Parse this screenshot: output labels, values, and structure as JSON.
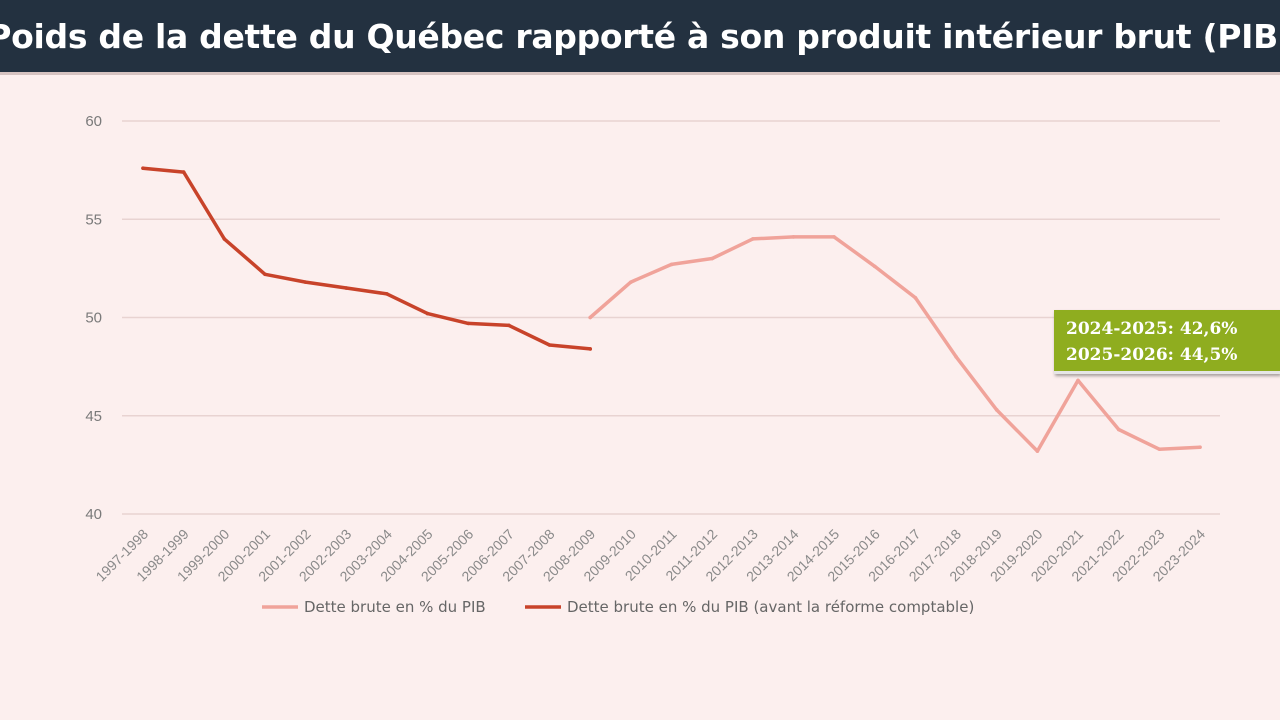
{
  "title": "Poids de la dette du Québec rapporté à son produit intérieur brut (PIB)",
  "colors": {
    "title_bg": "#233140",
    "chart_bg": "#fcefee",
    "series_new": "#f0a39a",
    "series_old": "#c8432a",
    "callout_bg": "#8fad1f"
  },
  "callout": {
    "line1": "2024-2025: 42,6%",
    "line2": "2025-2026: 44,5%"
  },
  "chart_data": {
    "type": "line",
    "title": "Poids de la dette du Québec rapporté à son produit intérieur brut (PIB)",
    "xlabel": "",
    "ylabel": "",
    "ylim": [
      40,
      60
    ],
    "yticks": [
      40,
      45,
      50,
      55,
      60
    ],
    "grid": true,
    "legend_position": "bottom",
    "categories": [
      "1997-1998",
      "1998-1999",
      "1999-2000",
      "2000-2001",
      "2001-2002",
      "2002-2003",
      "2003-2004",
      "2004-2005",
      "2005-2006",
      "2006-2007",
      "2007-2008",
      "2008-2009",
      "2009-2010",
      "2010-2011",
      "2011-2012",
      "2012-2013",
      "2013-2014",
      "2014-2015",
      "2015-2016",
      "2016-2017",
      "2017-2018",
      "2018-2019",
      "2019-2020",
      "2020-2021",
      "2021-2022",
      "2022-2023",
      "2023-2024"
    ],
    "series": [
      {
        "name": "Dette brute en % du PIB",
        "color": "#f0a39a",
        "values": [
          null,
          null,
          null,
          null,
          null,
          null,
          null,
          null,
          null,
          null,
          null,
          50.0,
          51.8,
          52.7,
          53.0,
          54.0,
          54.1,
          54.1,
          52.6,
          51.0,
          48.0,
          45.3,
          43.2,
          46.8,
          44.3,
          43.3,
          43.4
        ]
      },
      {
        "name": "Dette brute en % du PIB (avant la réforme comptable)",
        "color": "#c8432a",
        "values": [
          57.6,
          57.4,
          54.0,
          52.2,
          51.8,
          51.5,
          51.2,
          50.2,
          49.7,
          49.6,
          48.6,
          48.4,
          null,
          null,
          null,
          null,
          null,
          null,
          null,
          null,
          null,
          null,
          null,
          null,
          null,
          null,
          null
        ]
      }
    ]
  }
}
